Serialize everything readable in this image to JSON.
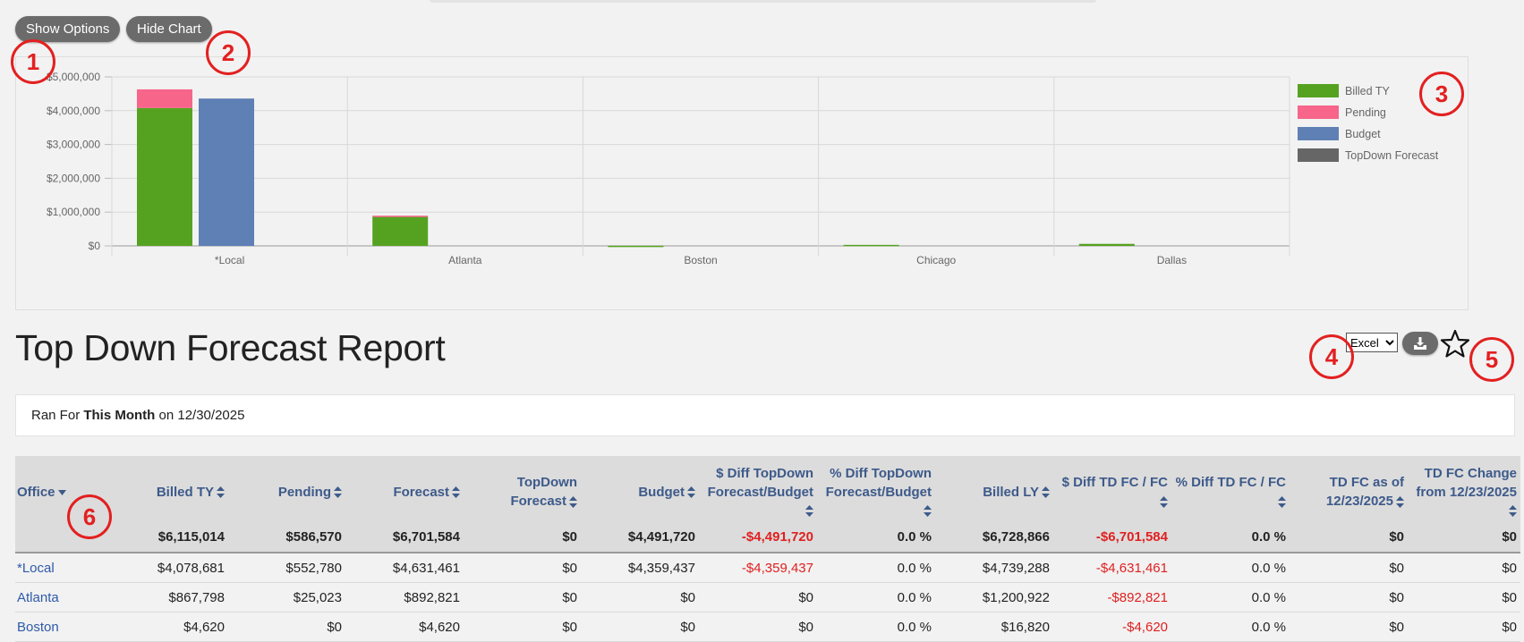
{
  "buttons": {
    "show_options": "Show Options",
    "hide_chart": "Hide Chart"
  },
  "callouts": [
    "1",
    "2",
    "3",
    "4",
    "5",
    "6"
  ],
  "chart_data": {
    "type": "bar",
    "categories": [
      "*Local",
      "Atlanta",
      "Boston",
      "Chicago",
      "Dallas"
    ],
    "series": [
      {
        "name": "Billed TY",
        "color": "#55a221",
        "values": [
          4078681,
          867798,
          4620,
          30000,
          60000
        ],
        "stack": "a"
      },
      {
        "name": "Pending",
        "color": "#f7658a",
        "values": [
          552780,
          25023,
          0,
          0,
          0
        ],
        "stack": "a"
      },
      {
        "name": "Budget",
        "color": "#5f80b5",
        "values": [
          4359437,
          0,
          0,
          0,
          0
        ],
        "stack": "b"
      },
      {
        "name": "TopDown Forecast",
        "color": "#666666",
        "values": [
          0,
          0,
          0,
          0,
          0
        ],
        "stack": "c"
      }
    ],
    "yticks": [
      "$0",
      "$1,000,000",
      "$2,000,000",
      "$3,000,000",
      "$4,000,000",
      "$5,000,000"
    ],
    "ylim": [
      0,
      5000000
    ],
    "grid": true,
    "legend": "right"
  },
  "report": {
    "title": "Top Down Forecast Report",
    "ran_prefix": "Ran For ",
    "ran_period": "This Month",
    "ran_suffix": " on 12/30/2025",
    "export_format": "Excel"
  },
  "table": {
    "columns": [
      "Office",
      "Billed TY",
      "Pending",
      "Forecast",
      "TopDown Forecast",
      "Budget",
      "$ Diff TopDown Forecast/Budget",
      "% Diff TopDown Forecast/Budget",
      "Billed LY",
      "$ Diff TD FC / FC",
      "% Diff TD FC / FC",
      "TD FC as of 12/23/2025",
      "TD FC Change from 12/23/2025"
    ],
    "totals": [
      "",
      "$6,115,014",
      "$586,570",
      "$6,701,584",
      "$0",
      "$4,491,720",
      "-$4,491,720",
      "0.0 %",
      "$6,728,866",
      "-$6,701,584",
      "0.0 %",
      "$0",
      "$0"
    ],
    "rows": [
      [
        "*Local",
        "$4,078,681",
        "$552,780",
        "$4,631,461",
        "$0",
        "$4,359,437",
        "-$4,359,437",
        "0.0 %",
        "$4,739,288",
        "-$4,631,461",
        "0.0 %",
        "$0",
        "$0"
      ],
      [
        "Atlanta",
        "$867,798",
        "$25,023",
        "$892,821",
        "$0",
        "$0",
        "$0",
        "0.0 %",
        "$1,200,922",
        "-$892,821",
        "0.0 %",
        "$0",
        "$0"
      ],
      [
        "Boston",
        "$4,620",
        "$0",
        "$4,620",
        "$0",
        "$0",
        "$0",
        "0.0 %",
        "$16,820",
        "-$4,620",
        "0.0 %",
        "$0",
        "$0"
      ]
    ]
  }
}
